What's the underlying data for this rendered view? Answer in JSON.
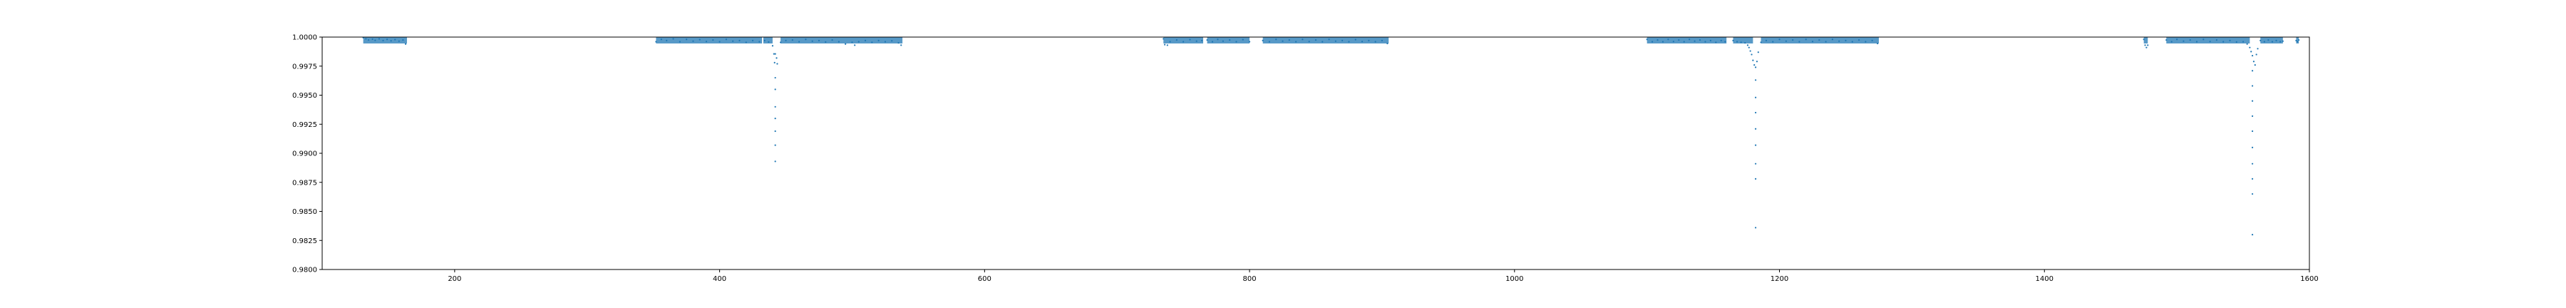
{
  "chart_data": {
    "type": "scatter",
    "title": "",
    "xlabel": "",
    "ylabel": "",
    "xlim": [
      100,
      1600
    ],
    "ylim": [
      0.98,
      1.0
    ],
    "x_ticks": [
      200,
      400,
      600,
      800,
      1000,
      1200,
      1400,
      1600
    ],
    "x_tick_labels": [
      "200",
      "400",
      "600",
      "800",
      "1000",
      "1200",
      "1400",
      "1600"
    ],
    "y_ticks": [
      0.98,
      0.9825,
      0.985,
      0.9875,
      0.99,
      0.9925,
      0.995,
      0.9975,
      1.0
    ],
    "y_tick_labels": [
      "0.9800",
      "0.9825",
      "0.9850",
      "0.9875",
      "0.9900",
      "0.9925",
      "0.9950",
      "0.9975",
      "1.0000"
    ],
    "grid": false,
    "legend": "none",
    "colors": {
      "marker": "#1f77b4",
      "axes": "#000000"
    },
    "segments": [
      [
        131,
        164
      ],
      [
        352,
        432
      ],
      [
        433,
        440
      ],
      [
        446,
        538
      ],
      [
        735,
        765
      ],
      [
        768,
        800
      ],
      [
        810,
        905
      ],
      [
        1100,
        1160
      ],
      [
        1165,
        1180
      ],
      [
        1186,
        1275
      ],
      [
        1475,
        1478
      ],
      [
        1492,
        1555
      ],
      [
        1563,
        1580
      ],
      [
        1590,
        1592
      ]
    ],
    "series": [
      {
        "values": [
          [
            131,
            0.99995
          ],
          [
            133,
            0.99985
          ],
          [
            135,
            0.99975
          ],
          [
            138,
            0.99982
          ],
          [
            140,
            0.99972
          ],
          [
            143,
            0.99985
          ],
          [
            146,
            0.9997
          ],
          [
            149,
            0.9998
          ],
          [
            152,
            0.99968
          ],
          [
            155,
            0.99978
          ],
          [
            158,
            0.99965
          ],
          [
            161,
            0.99975
          ],
          [
            163,
            0.9994
          ],
          [
            352,
            0.9996
          ],
          [
            356,
            0.9998
          ],
          [
            360,
            0.9997
          ],
          [
            365,
            0.99985
          ],
          [
            370,
            0.9996
          ],
          [
            375,
            0.9998
          ],
          [
            380,
            0.99965
          ],
          [
            385,
            0.99978
          ],
          [
            390,
            0.99962
          ],
          [
            395,
            0.99975
          ],
          [
            400,
            0.9996
          ],
          [
            405,
            0.9998
          ],
          [
            410,
            0.99965
          ],
          [
            415,
            0.9997
          ],
          [
            420,
            0.99955
          ],
          [
            425,
            0.9997
          ],
          [
            430,
            0.9996
          ],
          [
            434,
            0.9997
          ],
          [
            437,
            0.99958
          ],
          [
            440,
            0.99925
          ],
          [
            441,
            0.99855
          ],
          [
            441.5,
            0.9978
          ],
          [
            442,
            0.99855
          ],
          [
            442,
            0.9965
          ],
          [
            442,
            0.9955
          ],
          [
            442,
            0.994
          ],
          [
            442,
            0.993
          ],
          [
            442,
            0.9919
          ],
          [
            442,
            0.9907
          ],
          [
            442,
            0.9893
          ],
          [
            443,
            0.9982
          ],
          [
            443.5,
            0.9977
          ],
          [
            446,
            0.99955
          ],
          [
            450,
            0.9997
          ],
          [
            455,
            0.99975
          ],
          [
            460,
            0.9996
          ],
          [
            465,
            0.9998
          ],
          [
            470,
            0.99965
          ],
          [
            475,
            0.9997
          ],
          [
            480,
            0.99958
          ],
          [
            485,
            0.99975
          ],
          [
            490,
            0.9996
          ],
          [
            495,
            0.9994
          ],
          [
            500,
            0.99955
          ],
          [
            502,
            0.9993
          ],
          [
            505,
            0.9996
          ],
          [
            510,
            0.9997
          ],
          [
            515,
            0.99955
          ],
          [
            520,
            0.9997
          ],
          [
            525,
            0.9996
          ],
          [
            530,
            0.99968
          ],
          [
            535,
            0.9995
          ],
          [
            537,
            0.9993
          ],
          [
            735,
            0.99985
          ],
          [
            736,
            0.99935
          ],
          [
            738,
            0.9993
          ],
          [
            740,
            0.9996
          ],
          [
            745,
            0.99975
          ],
          [
            750,
            0.9996
          ],
          [
            755,
            0.99978
          ],
          [
            760,
            0.99965
          ],
          [
            764,
            0.9997
          ],
          [
            768,
            0.99975
          ],
          [
            772,
            0.9996
          ],
          [
            776,
            0.9998
          ],
          [
            780,
            0.99965
          ],
          [
            785,
            0.99975
          ],
          [
            790,
            0.9996
          ],
          [
            795,
            0.99978
          ],
          [
            800,
            0.9996
          ],
          [
            810,
            0.9997
          ],
          [
            815,
            0.9996
          ],
          [
            820,
            0.9998
          ],
          [
            825,
            0.99965
          ],
          [
            830,
            0.99975
          ],
          [
            835,
            0.9996
          ],
          [
            840,
            0.9998
          ],
          [
            845,
            0.99962
          ],
          [
            850,
            0.99975
          ],
          [
            855,
            0.9996
          ],
          [
            860,
            0.9998
          ],
          [
            865,
            0.99965
          ],
          [
            870,
            0.9997
          ],
          [
            875,
            0.9996
          ],
          [
            880,
            0.99978
          ],
          [
            885,
            0.99962
          ],
          [
            890,
            0.9997
          ],
          [
            895,
            0.9996
          ],
          [
            900,
            0.9997
          ],
          [
            904,
            0.99945
          ],
          [
            1100,
            0.9998
          ],
          [
            1104,
            0.9996
          ],
          [
            1108,
            0.99975
          ],
          [
            1112,
            0.9996
          ],
          [
            1116,
            0.9998
          ],
          [
            1120,
            0.99962
          ],
          [
            1124,
            0.99975
          ],
          [
            1128,
            0.9996
          ],
          [
            1132,
            0.9998
          ],
          [
            1136,
            0.99965
          ],
          [
            1140,
            0.99975
          ],
          [
            1144,
            0.9996
          ],
          [
            1148,
            0.9997
          ],
          [
            1152,
            0.99955
          ],
          [
            1156,
            0.9997
          ],
          [
            1159,
            0.9996
          ],
          [
            1165,
            0.9997
          ],
          [
            1168,
            0.9996
          ],
          [
            1171,
            0.99955
          ],
          [
            1174,
            0.9995
          ],
          [
            1176,
            0.9993
          ],
          [
            1177,
            0.9991
          ],
          [
            1178,
            0.9988
          ],
          [
            1179,
            0.9985
          ],
          [
            1180,
            0.998
          ],
          [
            1181,
            0.9976
          ],
          [
            1182,
            0.9974
          ],
          [
            1182,
            0.9963
          ],
          [
            1182,
            0.9948
          ],
          [
            1182,
            0.9935
          ],
          [
            1182,
            0.9921
          ],
          [
            1182,
            0.9907
          ],
          [
            1182,
            0.9891
          ],
          [
            1182,
            0.9878
          ],
          [
            1182,
            0.9836
          ],
          [
            1183,
            0.9979
          ],
          [
            1184,
            0.9987
          ],
          [
            1186,
            0.99955
          ],
          [
            1190,
            0.9997
          ],
          [
            1195,
            0.9996
          ],
          [
            1200,
            0.9998
          ],
          [
            1205,
            0.99965
          ],
          [
            1210,
            0.99975
          ],
          [
            1215,
            0.9996
          ],
          [
            1220,
            0.9998
          ],
          [
            1225,
            0.99962
          ],
          [
            1230,
            0.99975
          ],
          [
            1235,
            0.9996
          ],
          [
            1240,
            0.9998
          ],
          [
            1245,
            0.99965
          ],
          [
            1250,
            0.9997
          ],
          [
            1255,
            0.9996
          ],
          [
            1260,
            0.99975
          ],
          [
            1265,
            0.9996
          ],
          [
            1270,
            0.9997
          ],
          [
            1274,
            0.99945
          ],
          [
            1475,
            0.9998
          ],
          [
            1476,
            0.9993
          ],
          [
            1477,
            0.9991
          ],
          [
            1478,
            0.9993
          ],
          [
            1492,
            0.99975
          ],
          [
            1496,
            0.9996
          ],
          [
            1500,
            0.9998
          ],
          [
            1505,
            0.99965
          ],
          [
            1510,
            0.99975
          ],
          [
            1515,
            0.9996
          ],
          [
            1520,
            0.9998
          ],
          [
            1525,
            0.99962
          ],
          [
            1530,
            0.99975
          ],
          [
            1535,
            0.9996
          ],
          [
            1540,
            0.9997
          ],
          [
            1545,
            0.99958
          ],
          [
            1550,
            0.9996
          ],
          [
            1553,
            0.9994
          ],
          [
            1555,
            0.9991
          ],
          [
            1556,
            0.99875
          ],
          [
            1557,
            0.9984
          ],
          [
            1557,
            0.9971
          ],
          [
            1557,
            0.9958
          ],
          [
            1557,
            0.9945
          ],
          [
            1557,
            0.9932
          ],
          [
            1557,
            0.9919
          ],
          [
            1557,
            0.9905
          ],
          [
            1557,
            0.9891
          ],
          [
            1557,
            0.9878
          ],
          [
            1557,
            0.9865
          ],
          [
            1557,
            0.983
          ],
          [
            1558,
            0.9979
          ],
          [
            1559,
            0.9976
          ],
          [
            1560,
            0.9985
          ],
          [
            1561,
            0.999
          ],
          [
            1563,
            0.9997
          ],
          [
            1566,
            0.9996
          ],
          [
            1569,
            0.99975
          ],
          [
            1572,
            0.9996
          ],
          [
            1575,
            0.9997
          ],
          [
            1578,
            0.9996
          ],
          [
            1580,
            0.99965
          ],
          [
            1590,
            0.9997
          ],
          [
            1591,
            0.9996
          ],
          [
            1592,
            0.99975
          ]
        ]
      }
    ]
  }
}
